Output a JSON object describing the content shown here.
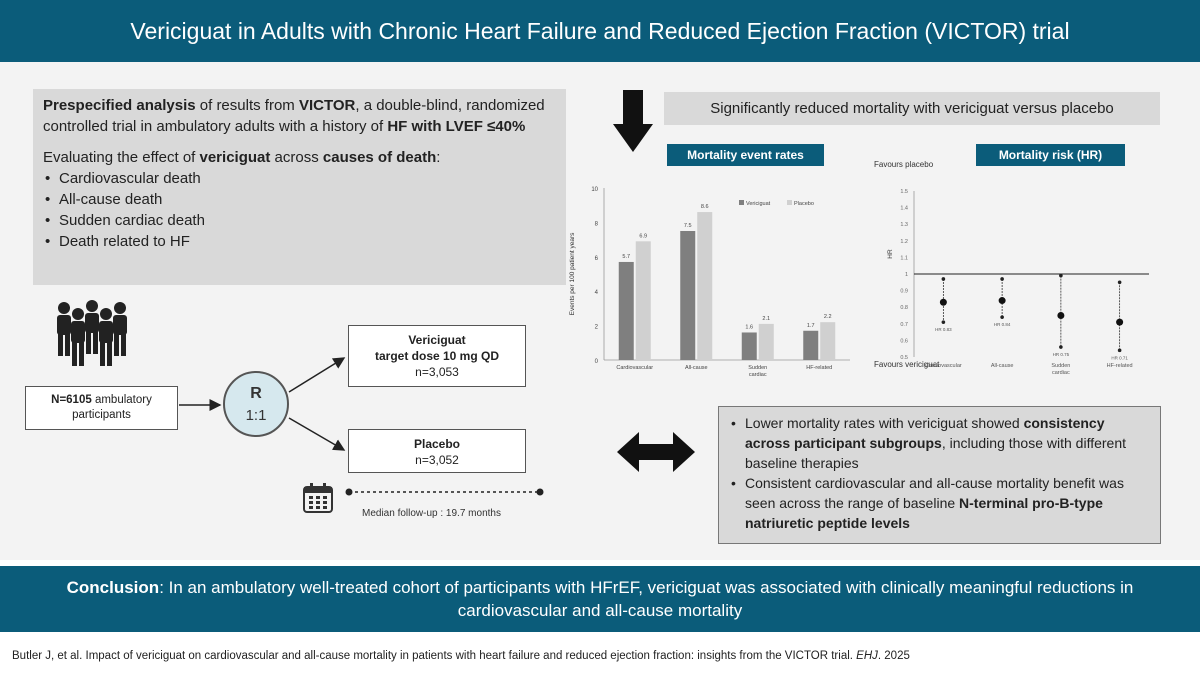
{
  "title": "Vericiguat in Adults with Chronic Heart Failure and Reduced Ejection Fraction (VICTOR) trial",
  "intro": {
    "p1_bold1": "Prespecified analysis",
    "p1_text1": " of results from ",
    "p1_bold2": "VICTOR",
    "p1_text2": ", a double-blind, randomized controlled trial in ambulatory adults with a history of ",
    "p1_bold3": "HF with LVEF ≤40%",
    "p2_text1": "Evaluating the effect of ",
    "p2_bold1": "vericiguat",
    "p2_text2": " across ",
    "p2_bold2": "causes of death",
    "p2_text3": ":",
    "bullets": [
      "Cardiovascular death",
      "All-cause death",
      "Sudden cardiac death",
      "Death related to HF"
    ]
  },
  "design": {
    "n_bold": "N=6105",
    "n_text": " ambulatory participants",
    "r_label": "R",
    "r_ratio": "1:1",
    "arm1_name": "Vericiguat",
    "arm1_dose": "target dose 10 mg QD",
    "arm1_n": "n=3,053",
    "arm2_name": "Placebo",
    "arm2_n": "n=3,052",
    "followup": "Median follow-up : 19.7 months"
  },
  "result_header": "Significantly reduced mortality with vericiguat versus placebo",
  "chips": {
    "rates": "Mortality event rates",
    "risk": "Mortality risk (HR)"
  },
  "chart_data": [
    {
      "type": "bar",
      "categories": [
        "Cardiovascular",
        "All-cause",
        "Sudden cardiac",
        "HF-related"
      ],
      "series": [
        {
          "name": "Vericiguat",
          "values": [
            5.7,
            7.5,
            1.6,
            1.7
          ],
          "color": "#7f7f7f"
        },
        {
          "name": "Placebo",
          "values": [
            6.9,
            8.6,
            2.1,
            2.2
          ],
          "color": "#d0d0d0"
        }
      ],
      "ylabel": "Events per 100 patient years",
      "ylim": [
        0,
        10
      ],
      "yticks": [
        0,
        2,
        4,
        6,
        8,
        10
      ],
      "legend": "top-right"
    },
    {
      "type": "scatter",
      "categories": [
        "Cardiovascular",
        "All-cause",
        "Sudden cardiac",
        "HF-related"
      ],
      "hr": [
        0.83,
        0.84,
        0.75,
        0.71
      ],
      "ci_low": [
        0.71,
        0.74,
        0.56,
        0.54
      ],
      "ci_high": [
        0.97,
        0.97,
        0.99,
        0.95
      ],
      "hr_labels": [
        "HR 0.83",
        "HR 0.84",
        "HR 0.75",
        "HR 0.71"
      ],
      "ylabel": "HR",
      "ylim": [
        0.5,
        1.5
      ],
      "yticks": [
        0.5,
        0.6,
        0.7,
        0.8,
        0.9,
        1,
        1.1,
        1.2,
        1.3,
        1.4,
        1.5
      ],
      "reference_line": 1,
      "top_label": "Favours placebo",
      "bottom_label": "Favours vericiguat"
    }
  ],
  "summary": {
    "b1_text1": "Lower mortality rates with vericiguat showed ",
    "b1_bold": "consistency across participant subgroups",
    "b1_text2": ", including those with different baseline therapies",
    "b2_text1": "Consistent cardiovascular and all-cause mortality benefit was seen across the range of baseline ",
    "b2_bold": "N-terminal pro-B-type natriuretic peptide levels"
  },
  "conclusion": {
    "bold": "Conclusion",
    "text": ": In an ambulatory well-treated cohort of participants with HFrEF, vericiguat was associated with clinically meaningful reductions in cardiovascular and all-cause mortality"
  },
  "citation": {
    "text": "Butler J, et al. Impact  of vericiguat on cardiovascular and all-cause mortality in patients with heart failure and reduced ejection fraction: insights from the VICTOR trial. ",
    "journal": "EHJ",
    "year": ". 2025"
  },
  "colors": {
    "brand": "#0b5c7a",
    "panel": "#d9d9d9",
    "background": "#f3f3f3"
  },
  "icons": [
    "people-group-icon",
    "calendar-icon",
    "down-arrow-icon",
    "double-arrow-icon"
  ]
}
